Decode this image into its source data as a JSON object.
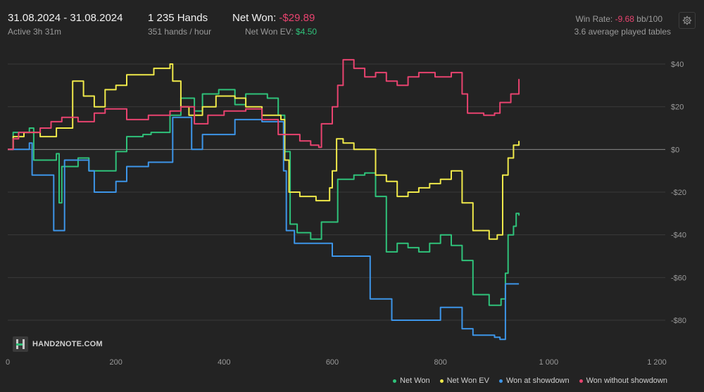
{
  "header": {
    "date_range": "31.08.2024 - 31.08.2024",
    "active": "Active 3h 31m",
    "hands": "1 235 Hands",
    "hands_per_hour": "351 hands / hour",
    "net_won_label": "Net Won:",
    "net_won_value": "-$29.89",
    "net_won_ev_label": "Net Won  EV:",
    "net_won_ev_value": "$4.50",
    "win_rate_label": "Win Rate:",
    "win_rate_value": "-9.68",
    "win_rate_unit": "bb/100",
    "avg_tables": "3.6 average played tables",
    "settings_icon": "gear-icon"
  },
  "logo": {
    "text": "HAND2NOTE.COM"
  },
  "colors": {
    "background": "#232323",
    "net_won": "#2fc27a",
    "net_won_ev": "#f0e94a",
    "won_at_showdown": "#3d95e8",
    "won_without_showdown": "#e8436f",
    "negative": "#e8436f",
    "positive": "#2fc27a"
  },
  "chart_data": {
    "type": "line",
    "xlim": [
      0,
      1235
    ],
    "ylim": [
      -90,
      44
    ],
    "x_ticks": [
      0,
      200,
      400,
      600,
      800,
      1000,
      1200
    ],
    "x_tick_labels": [
      "0",
      "200",
      "400",
      "600",
      "800",
      "1 000",
      "1 200"
    ],
    "y_ticks": [
      40,
      20,
      0,
      -20,
      -40,
      -60,
      -80
    ],
    "y_tick_labels": [
      "$40",
      "$20",
      "$0",
      "-$20",
      "-$40",
      "-$60",
      "-$80"
    ],
    "grid": true,
    "legend_position": "bottom-right",
    "series": [
      {
        "name": "Net Won",
        "color": "#2fc27a",
        "points": [
          [
            0,
            0
          ],
          [
            10,
            8
          ],
          [
            40,
            10
          ],
          [
            48,
            -5
          ],
          [
            90,
            -2
          ],
          [
            95,
            -25
          ],
          [
            100,
            -8
          ],
          [
            130,
            -4
          ],
          [
            150,
            -10
          ],
          [
            200,
            -1
          ],
          [
            220,
            6
          ],
          [
            250,
            7
          ],
          [
            265,
            8
          ],
          [
            300,
            16
          ],
          [
            320,
            24
          ],
          [
            345,
            18
          ],
          [
            360,
            26
          ],
          [
            390,
            28
          ],
          [
            420,
            21
          ],
          [
            440,
            26
          ],
          [
            480,
            24
          ],
          [
            500,
            16
          ],
          [
            512,
            -1
          ],
          [
            522,
            -35
          ],
          [
            535,
            -39
          ],
          [
            560,
            -42
          ],
          [
            580,
            -34
          ],
          [
            610,
            -14
          ],
          [
            640,
            -12
          ],
          [
            660,
            -11
          ],
          [
            680,
            -22
          ],
          [
            700,
            -48
          ],
          [
            720,
            -44
          ],
          [
            740,
            -46
          ],
          [
            760,
            -48
          ],
          [
            780,
            -44
          ],
          [
            800,
            -40
          ],
          [
            820,
            -45
          ],
          [
            840,
            -52
          ],
          [
            860,
            -68
          ],
          [
            890,
            -73
          ],
          [
            912,
            -70
          ],
          [
            920,
            -58
          ],
          [
            925,
            -40
          ],
          [
            935,
            -36
          ],
          [
            940,
            -30
          ],
          [
            945,
            -31
          ]
        ]
      },
      {
        "name": "Net Won  EV",
        "color": "#f0e94a",
        "points": [
          [
            0,
            0
          ],
          [
            10,
            6
          ],
          [
            30,
            8
          ],
          [
            60,
            6
          ],
          [
            90,
            10
          ],
          [
            120,
            32
          ],
          [
            140,
            25
          ],
          [
            160,
            20
          ],
          [
            180,
            28
          ],
          [
            200,
            30
          ],
          [
            220,
            35
          ],
          [
            270,
            38
          ],
          [
            300,
            40
          ],
          [
            305,
            32
          ],
          [
            320,
            20
          ],
          [
            335,
            16
          ],
          [
            360,
            20
          ],
          [
            385,
            25
          ],
          [
            420,
            24
          ],
          [
            440,
            20
          ],
          [
            470,
            16
          ],
          [
            505,
            14
          ],
          [
            512,
            -5
          ],
          [
            520,
            -20
          ],
          [
            540,
            -22
          ],
          [
            570,
            -24
          ],
          [
            595,
            -18
          ],
          [
            600,
            -10
          ],
          [
            608,
            5
          ],
          [
            620,
            3
          ],
          [
            640,
            0
          ],
          [
            660,
            0
          ],
          [
            680,
            -12
          ],
          [
            700,
            -15
          ],
          [
            720,
            -22
          ],
          [
            740,
            -20
          ],
          [
            760,
            -18
          ],
          [
            780,
            -16
          ],
          [
            800,
            -14
          ],
          [
            820,
            -10
          ],
          [
            840,
            -25
          ],
          [
            860,
            -38
          ],
          [
            890,
            -42
          ],
          [
            905,
            -40
          ],
          [
            915,
            -12
          ],
          [
            925,
            -4
          ],
          [
            935,
            2
          ],
          [
            945,
            4
          ]
        ]
      },
      {
        "name": "Won at showdown",
        "color": "#3d95e8",
        "points": [
          [
            0,
            0
          ],
          [
            35,
            0
          ],
          [
            40,
            3
          ],
          [
            45,
            -12
          ],
          [
            80,
            -12
          ],
          [
            85,
            -38
          ],
          [
            100,
            -38
          ],
          [
            105,
            -5
          ],
          [
            150,
            -10
          ],
          [
            160,
            -20
          ],
          [
            200,
            -15
          ],
          [
            220,
            -8
          ],
          [
            260,
            -6
          ],
          [
            300,
            -6
          ],
          [
            305,
            15
          ],
          [
            335,
            15
          ],
          [
            340,
            0
          ],
          [
            360,
            7
          ],
          [
            400,
            7
          ],
          [
            420,
            14
          ],
          [
            460,
            14
          ],
          [
            470,
            13
          ],
          [
            500,
            13
          ],
          [
            510,
            -10
          ],
          [
            515,
            -38
          ],
          [
            530,
            -44
          ],
          [
            590,
            -44
          ],
          [
            600,
            -50
          ],
          [
            660,
            -50
          ],
          [
            670,
            -70
          ],
          [
            700,
            -70
          ],
          [
            710,
            -80
          ],
          [
            760,
            -80
          ],
          [
            780,
            -80
          ],
          [
            800,
            -74
          ],
          [
            830,
            -74
          ],
          [
            840,
            -84
          ],
          [
            860,
            -87
          ],
          [
            900,
            -88
          ],
          [
            910,
            -89
          ],
          [
            920,
            -63
          ],
          [
            945,
            -63
          ]
        ]
      },
      {
        "name": "Won without showdown",
        "color": "#e8436f",
        "points": [
          [
            0,
            0
          ],
          [
            10,
            5
          ],
          [
            20,
            8
          ],
          [
            40,
            8
          ],
          [
            60,
            10
          ],
          [
            80,
            13
          ],
          [
            100,
            15
          ],
          [
            130,
            13
          ],
          [
            160,
            17
          ],
          [
            180,
            19
          ],
          [
            220,
            14
          ],
          [
            260,
            16
          ],
          [
            300,
            18
          ],
          [
            320,
            20
          ],
          [
            345,
            12
          ],
          [
            370,
            16
          ],
          [
            400,
            18
          ],
          [
            440,
            19
          ],
          [
            470,
            14
          ],
          [
            500,
            7
          ],
          [
            540,
            4
          ],
          [
            560,
            2
          ],
          [
            575,
            1
          ],
          [
            580,
            12
          ],
          [
            600,
            20
          ],
          [
            610,
            30
          ],
          [
            620,
            42
          ],
          [
            640,
            38
          ],
          [
            660,
            34
          ],
          [
            680,
            36
          ],
          [
            700,
            32
          ],
          [
            720,
            30
          ],
          [
            740,
            34
          ],
          [
            760,
            36
          ],
          [
            790,
            34
          ],
          [
            820,
            36
          ],
          [
            840,
            26
          ],
          [
            850,
            17
          ],
          [
            880,
            16
          ],
          [
            900,
            17
          ],
          [
            910,
            22
          ],
          [
            930,
            26
          ],
          [
            945,
            33
          ]
        ]
      }
    ]
  }
}
